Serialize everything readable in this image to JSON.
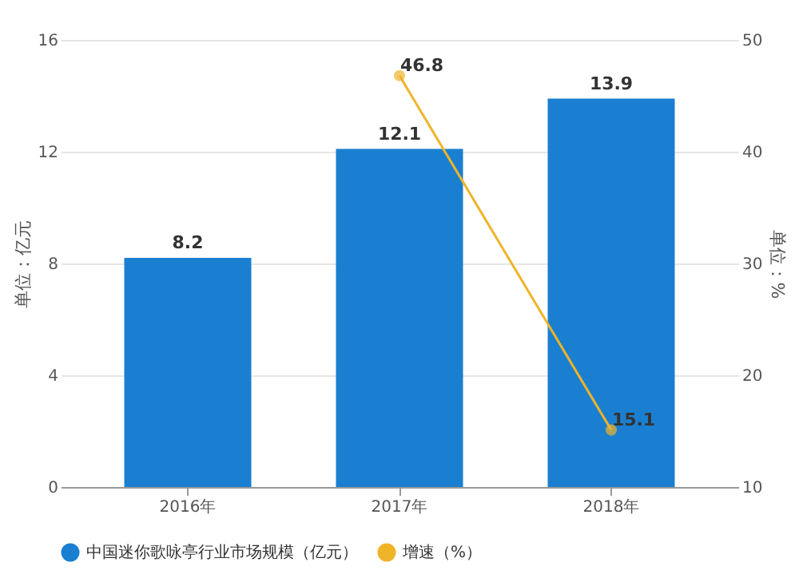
{
  "chart_data": {
    "type": "bar",
    "categories": [
      "2016年",
      "2017年",
      "2018年"
    ],
    "ylabel": "单位：亿元",
    "y2label": "单位：%",
    "series": [
      {
        "name": "中国迷你歌咏亭行业市场规模（亿元）",
        "color": "#1a7fd0",
        "values": [
          8.2,
          12.1,
          13.9
        ]
      },
      {
        "name": "增速（%）",
        "type": "line",
        "axis": "y2",
        "color": "#f0b429",
        "values": [
          null,
          46.8,
          15.1
        ]
      }
    ],
    "ylim": [
      0,
      16
    ],
    "yticks": [
      0,
      4,
      8,
      12,
      16
    ],
    "y2lim": [
      10,
      50
    ],
    "y2ticks": [
      10,
      20,
      30,
      40,
      50
    ],
    "data_labels": true,
    "grid": "y",
    "legend": "bottom",
    "marker": "circle",
    "line_style": "solid"
  }
}
